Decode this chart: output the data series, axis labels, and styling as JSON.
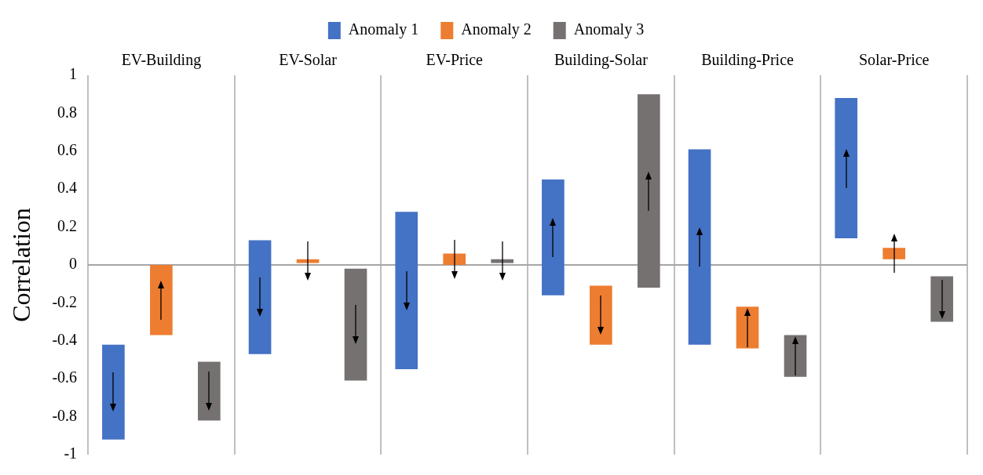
{
  "chart_data": {
    "type": "bar",
    "ylabel": "Correlation",
    "categories": [
      "EV-Building",
      "EV-Solar",
      "EV-Price",
      "Building-Solar",
      "Building-Price",
      "Solar-Price"
    ],
    "series": [
      {
        "name": "Anomaly 1",
        "color": "#4472c4",
        "base": [
          -0.42,
          0.13,
          0.28,
          -0.16,
          -0.42,
          0.14
        ],
        "values": [
          -0.5,
          -0.6,
          -0.83,
          0.61,
          1.03,
          0.74
        ]
      },
      {
        "name": "Anomaly 2",
        "color": "#ed7d31",
        "base": [
          -0.37,
          0.03,
          0.06,
          -0.11,
          -0.44,
          0.03
        ],
        "values": [
          0.37,
          -0.02,
          -0.06,
          -0.31,
          0.22,
          0.06
        ]
      },
      {
        "name": "Anomaly 3",
        "color": "#767171",
        "base": [
          -0.51,
          -0.02,
          0.03,
          -0.12,
          -0.59,
          -0.06
        ],
        "values": [
          -0.31,
          -0.59,
          -0.02,
          1.02,
          0.22,
          -0.24
        ]
      }
    ],
    "ylim": [
      -1,
      1
    ],
    "yticks": [
      -1,
      -0.8,
      -0.6,
      -0.4,
      -0.2,
      0,
      0.2,
      0.4,
      0.6,
      0.8,
      1
    ],
    "ref_lines": [
      {
        "axis": "y",
        "value": 0,
        "color": "#a6a6a6"
      }
    ],
    "grid": "x",
    "legend": "top"
  }
}
